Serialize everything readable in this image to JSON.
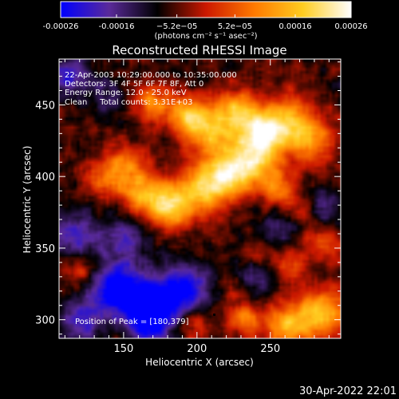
{
  "chart_data": {
    "type": "heatmap",
    "title": "Reconstructed RHESSI Image",
    "xlabel": "Heliocentric X (arcsec)",
    "ylabel": "Heliocentric Y (arcsec)",
    "xlim": [
      106,
      298
    ],
    "ylim": [
      287,
      482
    ],
    "xticks": [
      150,
      200,
      250
    ],
    "xtick_labels": [
      "150",
      "200",
      "250"
    ],
    "yticks": [
      300,
      350,
      400,
      450
    ],
    "ytick_labels": [
      "300",
      "350",
      "400",
      "450"
    ],
    "colorbar": {
      "range": [
        -0.00026,
        0.00026
      ],
      "tick_values": [
        -0.00026,
        -0.00016,
        -5.2e-05,
        5.2e-05,
        0.00016,
        0.00026
      ],
      "tick_labels": [
        "-0.00026",
        "-0.00016",
        "−5.2e−05",
        "5.2e−05",
        "0.00016",
        "0.00026"
      ],
      "unit_label": "(photons cm⁻² s⁻¹ asec⁻²)",
      "colormap": [
        "#0000ff",
        "#5a2a9a",
        "#000000",
        "#cc1800",
        "#ff7a00",
        "#ffcc20",
        "#ffffff"
      ]
    },
    "annotations": [
      "22-Apr-2003 10:29:00.000 to 10:35:00.000",
      "Detectors: 3F 4F 5F 6F 7F 8F, Att 0",
      "Energy Range: 12.0 - 25.0 keV",
      "Clean     Total counts: 3.31E+03"
    ],
    "peak_label": "Position of Peak = [180,379]",
    "peak_position": [
      180,
      379
    ],
    "features": [
      {
        "x": 170,
        "y": 452,
        "intensity": 0.55,
        "spread": 10
      },
      {
        "x": 195,
        "y": 442,
        "intensity": 0.75,
        "spread": 10
      },
      {
        "x": 210,
        "y": 430,
        "intensity": 0.7,
        "spread": 12
      },
      {
        "x": 228,
        "y": 445,
        "intensity": 0.85,
        "spread": 10
      },
      {
        "x": 245,
        "y": 430,
        "intensity": 0.9,
        "spread": 10
      },
      {
        "x": 262,
        "y": 440,
        "intensity": 0.75,
        "spread": 12
      },
      {
        "x": 278,
        "y": 425,
        "intensity": 0.65,
        "spread": 11
      },
      {
        "x": 240,
        "y": 412,
        "intensity": 0.85,
        "spread": 12
      },
      {
        "x": 222,
        "y": 402,
        "intensity": 0.8,
        "spread": 11
      },
      {
        "x": 205,
        "y": 392,
        "intensity": 0.85,
        "spread": 12
      },
      {
        "x": 180,
        "y": 380,
        "intensity": 1.0,
        "spread": 11
      },
      {
        "x": 160,
        "y": 390,
        "intensity": 0.6,
        "spread": 10
      },
      {
        "x": 150,
        "y": 408,
        "intensity": 0.55,
        "spread": 10
      },
      {
        "x": 135,
        "y": 398,
        "intensity": 0.45,
        "spread": 8
      },
      {
        "x": 255,
        "y": 392,
        "intensity": 0.5,
        "spread": 9
      },
      {
        "x": 270,
        "y": 376,
        "intensity": 0.4,
        "spread": 8
      },
      {
        "x": 285,
        "y": 352,
        "intensity": 0.45,
        "spread": 9
      },
      {
        "x": 263,
        "y": 338,
        "intensity": 0.4,
        "spread": 8
      },
      {
        "x": 240,
        "y": 343,
        "intensity": 0.35,
        "spread": 8
      },
      {
        "x": 286,
        "y": 305,
        "intensity": 0.85,
        "spread": 12
      },
      {
        "x": 262,
        "y": 296,
        "intensity": 0.75,
        "spread": 11
      },
      {
        "x": 232,
        "y": 300,
        "intensity": 0.55,
        "spread": 8
      },
      {
        "x": 200,
        "y": 296,
        "intensity": 0.35,
        "spread": 7
      },
      {
        "x": 226,
        "y": 322,
        "intensity": 0.25,
        "spread": 6
      },
      {
        "x": 120,
        "y": 335,
        "intensity": 0.3,
        "spread": 8
      },
      {
        "x": 145,
        "y": 320,
        "intensity": -0.95,
        "spread": 12
      },
      {
        "x": 170,
        "y": 312,
        "intensity": -0.9,
        "spread": 12
      },
      {
        "x": 192,
        "y": 322,
        "intensity": -0.75,
        "spread": 11
      },
      {
        "x": 168,
        "y": 295,
        "intensity": -0.65,
        "spread": 9
      },
      {
        "x": 240,
        "y": 332,
        "intensity": -0.45,
        "spread": 10
      },
      {
        "x": 120,
        "y": 298,
        "intensity": -0.55,
        "spread": 10
      },
      {
        "x": 113,
        "y": 470,
        "intensity": -0.55,
        "spread": 10
      },
      {
        "x": 140,
        "y": 455,
        "intensity": -0.3,
        "spread": 9
      },
      {
        "x": 117,
        "y": 360,
        "intensity": -0.5,
        "spread": 11
      },
      {
        "x": 150,
        "y": 355,
        "intensity": -0.45,
        "spread": 12
      },
      {
        "x": 285,
        "y": 378,
        "intensity": -0.35,
        "spread": 9
      },
      {
        "x": 258,
        "y": 365,
        "intensity": -0.35,
        "spread": 10
      }
    ]
  },
  "footer": {
    "timestamp": "30-Apr-2022 22:01"
  }
}
